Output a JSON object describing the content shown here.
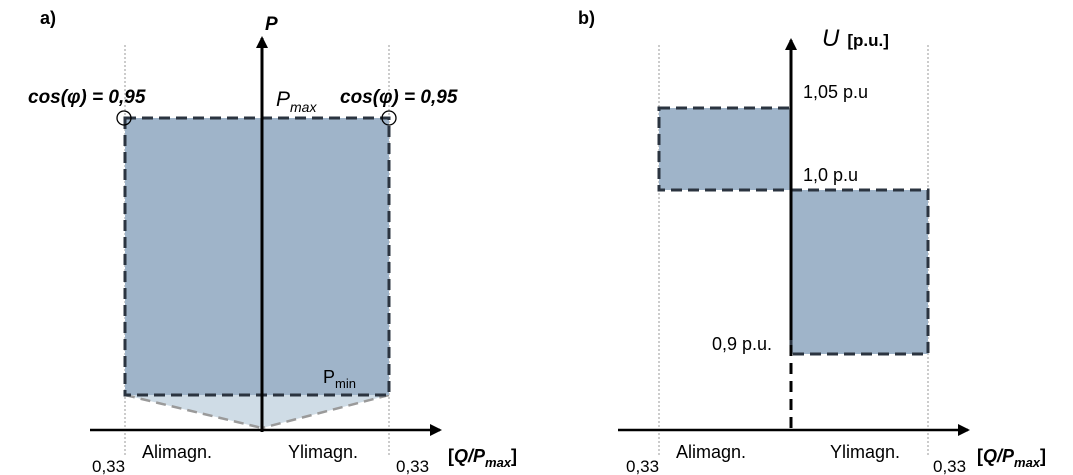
{
  "colors": {
    "region_fill": "#9fb4c9",
    "region_edge": "#2b3440",
    "min_fill": "#cfdce6",
    "min_edge": "#9a9a9a",
    "guide": "#9a9a9a",
    "axis": "#000000"
  },
  "panel_a": {
    "letter": "a)",
    "y_axis_label": "P",
    "pmax_base": "P",
    "pmax_sub": "max",
    "pmin_base": "P",
    "pmin_sub": "min",
    "cos_left": "cos(φ) = 0,95",
    "cos_right": "cos(φ) = 0,95",
    "x_left_region": "Alimagn.",
    "x_right_region": "Ylimagn.",
    "tick_left": "0,33",
    "tick_right": "0,33",
    "x_unit_open": "[",
    "x_unit_q": "Q/P",
    "x_unit_sub": "max",
    "x_unit_close": "]"
  },
  "panel_b": {
    "letter": "b)",
    "y_axis_label": "U",
    "y_axis_unit": "[p.u.]",
    "level_high": "1,05 p.u",
    "level_mid": "1,0 p.u",
    "level_low": "0,9 p.u.",
    "x_left_region": "Alimagn.",
    "x_right_region": "Ylimagn.",
    "tick_left": "0,33",
    "tick_right": "0,33",
    "x_unit_open": "[",
    "x_unit_q": "Q/P",
    "x_unit_sub": "max",
    "x_unit_close": "]"
  }
}
